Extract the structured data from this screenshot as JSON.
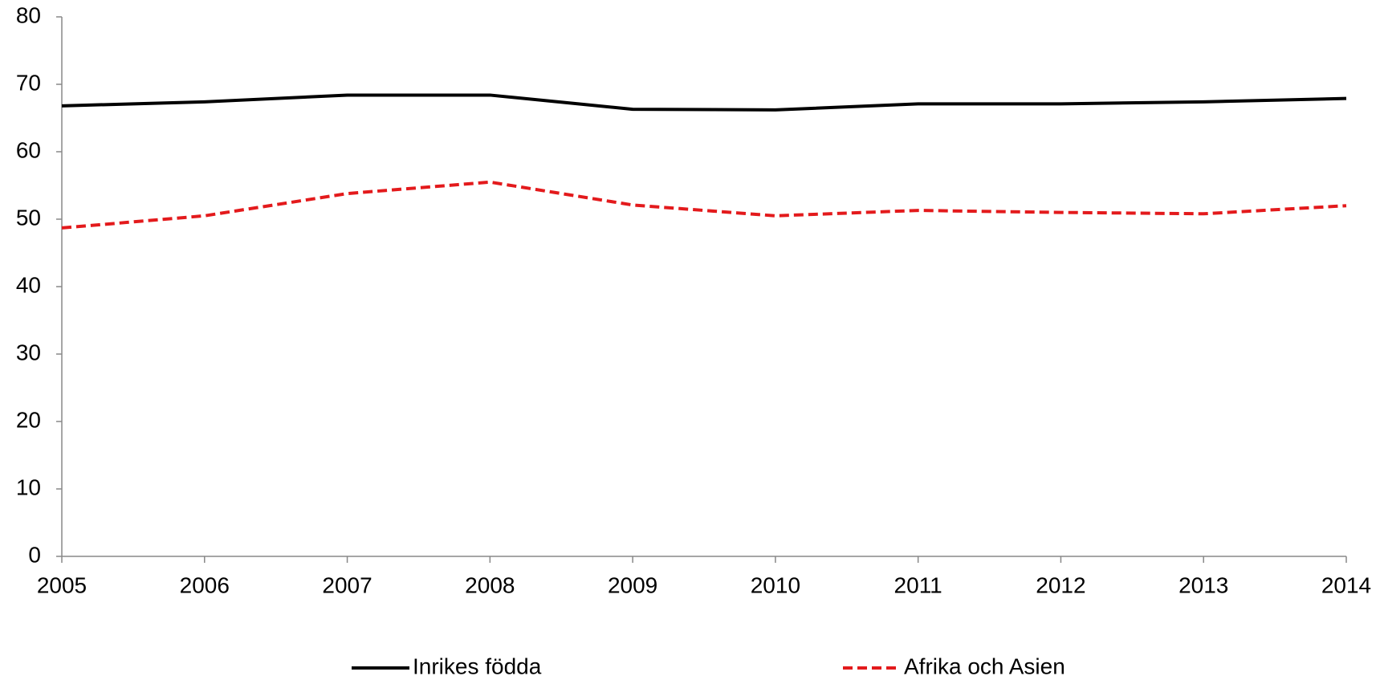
{
  "chart_data": {
    "type": "line",
    "categories": [
      "2005",
      "2006",
      "2007",
      "2008",
      "2009",
      "2010",
      "2011",
      "2012",
      "2013",
      "2014"
    ],
    "series": [
      {
        "name": "Inrikes födda",
        "color": "#000000",
        "dash": false,
        "values": [
          66.8,
          67.4,
          68.4,
          68.4,
          66.3,
          66.2,
          67.1,
          67.1,
          67.4,
          67.9
        ]
      },
      {
        "name": "Afrika och Asien",
        "color": "#e31a1c",
        "dash": true,
        "values": [
          48.7,
          50.5,
          53.8,
          55.5,
          52.1,
          50.5,
          51.3,
          51.0,
          50.8,
          52.0
        ]
      }
    ],
    "ylim": [
      0,
      80
    ],
    "yticks": [
      0,
      10,
      20,
      30,
      40,
      50,
      60,
      70,
      80
    ],
    "grid": false,
    "legend": "bottom"
  }
}
